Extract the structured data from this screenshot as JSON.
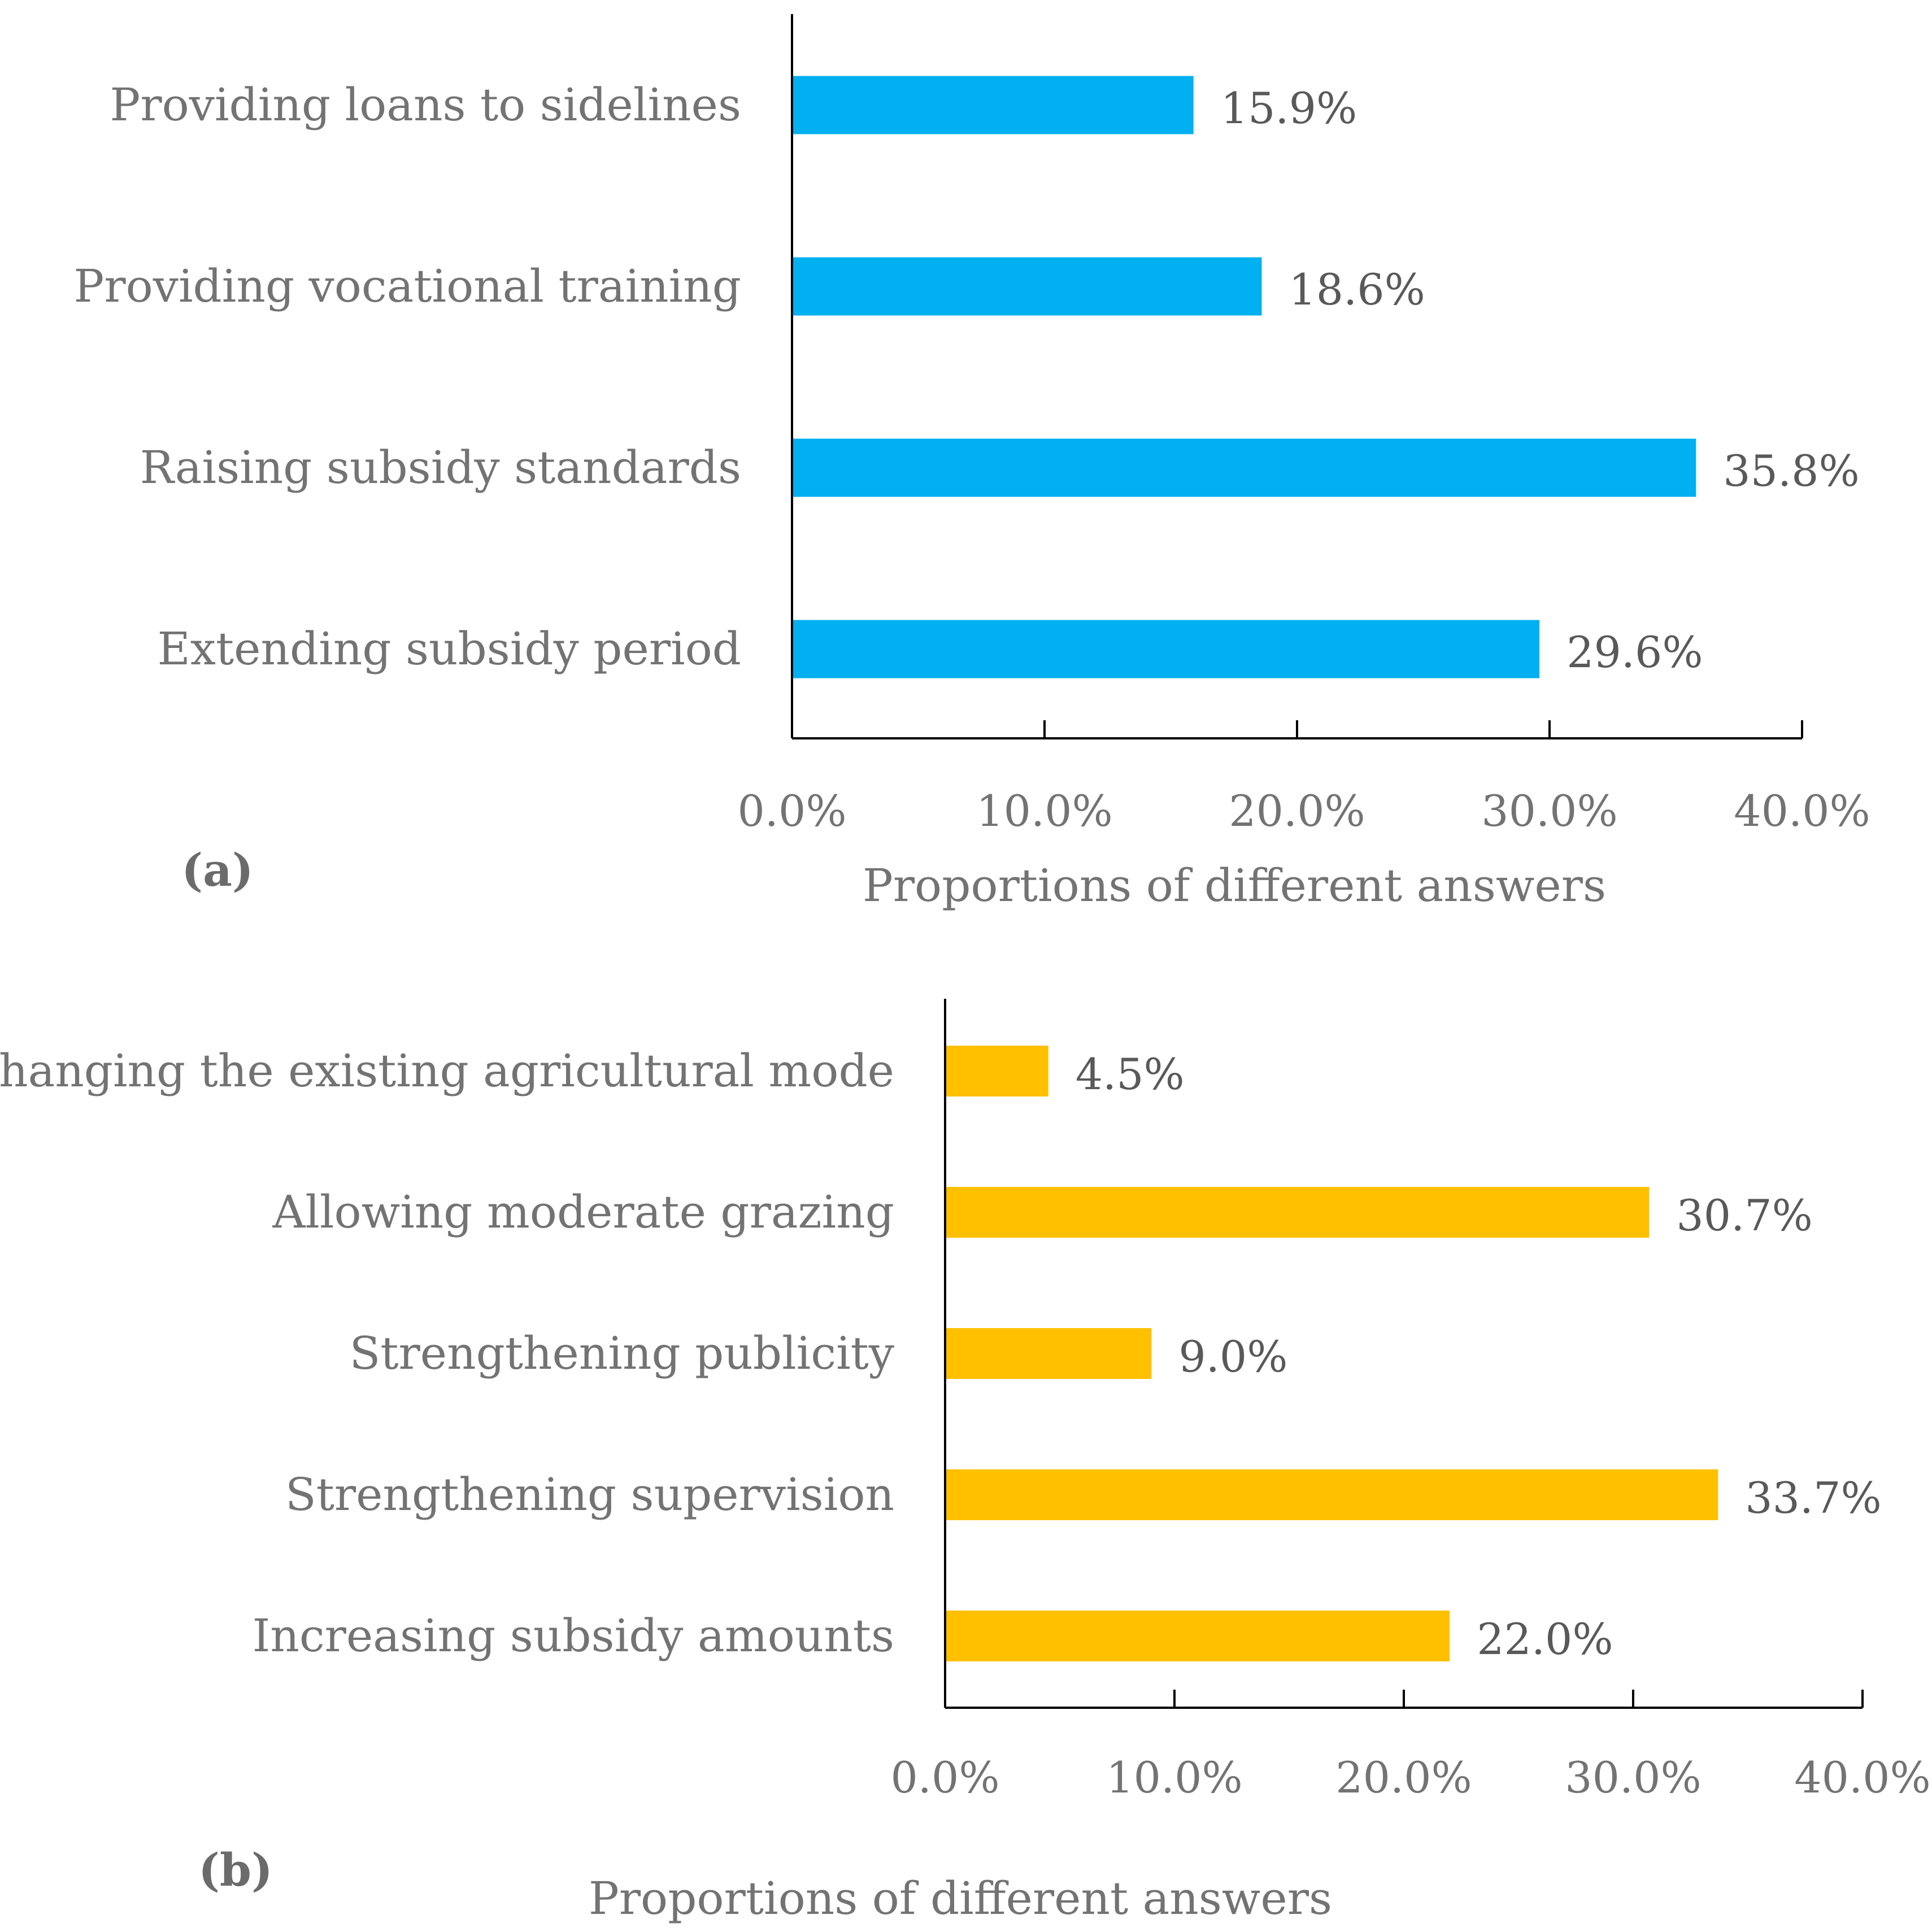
{
  "chart_data": [
    {
      "type": "bar",
      "orientation": "horizontal",
      "panel_label": "(a)",
      "categories": [
        "Providing loans to sidelines",
        "Providing vocational training",
        "Raising subsidy standards",
        "Extending subsidy period"
      ],
      "values": [
        15.9,
        18.6,
        35.8,
        29.6
      ],
      "data_labels": [
        "15.9%",
        "18.6%",
        "35.8%",
        "29.6%"
      ],
      "xlabel": "Proportions of different answers",
      "xlim": [
        0,
        40
      ],
      "xticks": [
        "0.0%",
        "10.0%",
        "20.0%",
        "30.0%",
        "40.0%"
      ],
      "color": "#00b0f0"
    },
    {
      "type": "bar",
      "orientation": "horizontal",
      "panel_label": "(b)",
      "categories": [
        "Changing the existing agricultural mode",
        "Allowing moderate grazing",
        "Strengthening publicity",
        "Strengthening supervision",
        "Increasing subsidy amounts"
      ],
      "values": [
        4.5,
        30.7,
        9.0,
        33.7,
        22.0
      ],
      "data_labels": [
        "4.5%",
        "30.7%",
        "9.0%",
        "33.7%",
        "22.0%"
      ],
      "xlabel": "Proportions of different answers",
      "xlim": [
        0,
        40
      ],
      "xticks": [
        "0.0%",
        "10.0%",
        "20.0%",
        "30.0%",
        "40.0%"
      ],
      "color": "#ffc000"
    }
  ]
}
